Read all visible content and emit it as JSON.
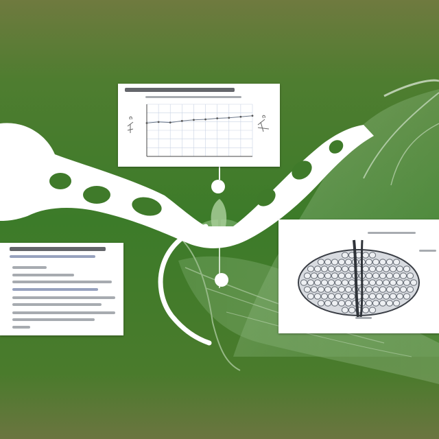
{
  "colors": {
    "background_top": "#6f7a3f",
    "background_mid": "#3f7a2a",
    "background_bottom": "#4c7a2c",
    "leaf_light": "#8fb784",
    "bone_white": "#ffffff",
    "panel_bg": "#ffffff",
    "diagram_cell": "#9aa0a8",
    "diagram_line": "#3b3f46"
  },
  "chart_data": {
    "type": "line",
    "title": "",
    "xlabel": "",
    "ylabel": "",
    "x": [
      1,
      2,
      3,
      4,
      5,
      6,
      7,
      8,
      9,
      10
    ],
    "values": [
      64,
      66,
      65,
      68,
      70,
      71,
      73,
      74,
      76,
      78
    ],
    "ylim": [
      0,
      100
    ],
    "grid": true
  },
  "icons": {
    "chart_left_figure": "plant-sketch-icon",
    "chart_right_figure": "plant-sketch-icon",
    "joint_nodes": "joint-node-icon"
  }
}
